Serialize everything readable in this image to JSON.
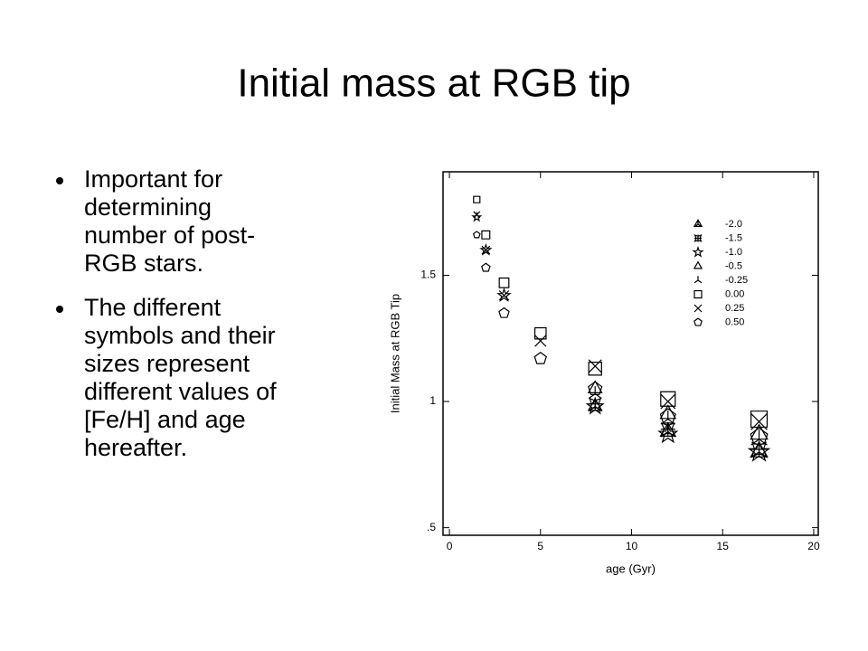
{
  "title": "Initial mass at RGB tip",
  "bullets": [
    [
      "Important for",
      "determining",
      "number of post-",
      "RGB stars."
    ],
    [
      "The different",
      "symbols and their",
      "sizes represent",
      "different values of",
      "[Fe/H] and age",
      "hereafter."
    ]
  ],
  "chart_data": {
    "type": "scatter",
    "xlabel": "age (Gyr)",
    "ylabel": "Initial Mass at RGB Tip",
    "x": [
      1.5,
      2,
      3,
      5,
      8,
      12,
      17
    ],
    "xlim": [
      -0.35,
      20.25
    ],
    "xticks": [
      0,
      5,
      10,
      15,
      20
    ],
    "ylim": [
      0.47,
      1.91
    ],
    "yticks": [
      {
        "value": 0.5,
        "label": ".5"
      },
      1,
      1.5
    ],
    "color": "#000000",
    "series": [
      {
        "name": "-2.0",
        "marker": "tri-star",
        "values": [
          null,
          null,
          null,
          null,
          0.98,
          0.88,
          0.8
        ]
      },
      {
        "name": "-1.5",
        "marker": "star4",
        "values": [
          null,
          null,
          null,
          null,
          0.99,
          0.89,
          0.81
        ]
      },
      {
        "name": "-1.0",
        "marker": "star",
        "values": [
          1.73,
          1.6,
          1.42,
          null,
          0.98,
          0.87,
          0.8
        ]
      },
      {
        "name": "-0.5",
        "marker": "triangle",
        "values": [
          null,
          null,
          null,
          null,
          1.05,
          0.95,
          0.87
        ]
      },
      {
        "name": "-0.25",
        "marker": "tri",
        "values": [
          null,
          null,
          null,
          null,
          1.03,
          0.93,
          0.85
        ]
      },
      {
        "name": "0.00",
        "marker": "square",
        "values": [
          1.8,
          1.66,
          1.47,
          1.27,
          1.13,
          1.01,
          0.93
        ]
      },
      {
        "name": "0.25",
        "marker": "x",
        "values": [
          1.74,
          1.6,
          1.42,
          1.24,
          1.14,
          1.0,
          0.92
        ]
      },
      {
        "name": "0.50",
        "marker": "pentagon",
        "values": [
          1.66,
          1.53,
          1.35,
          1.17,
          1.05,
          0.94,
          0.86
        ]
      }
    ]
  }
}
